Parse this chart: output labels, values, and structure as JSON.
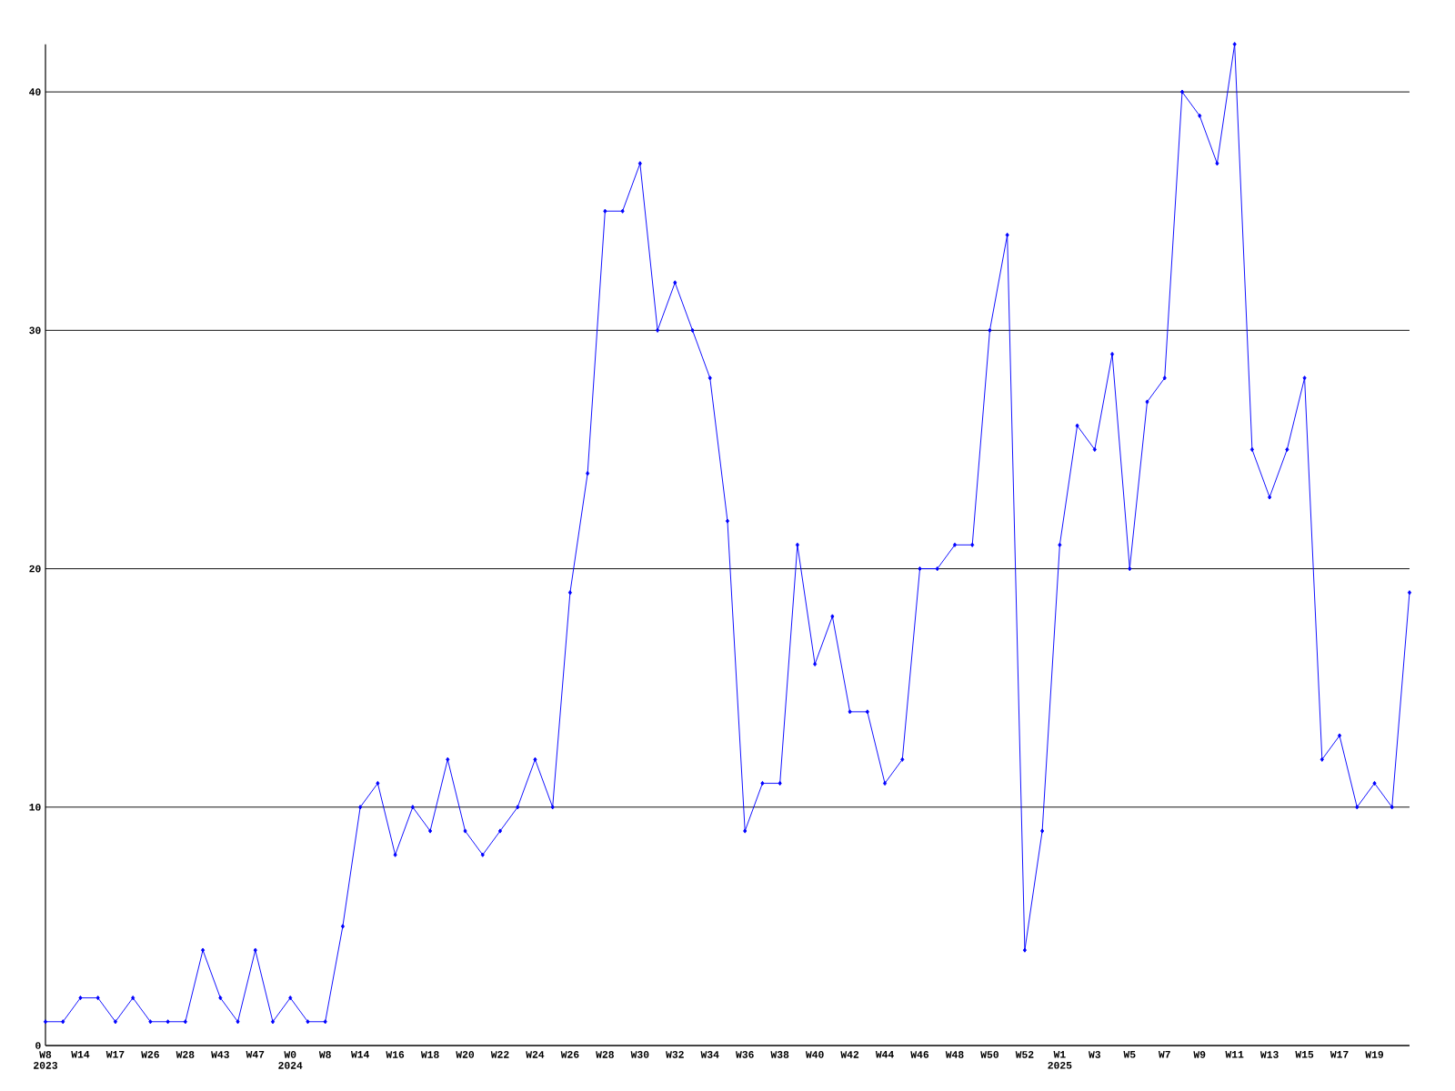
{
  "chart_data": {
    "type": "line",
    "categories": [
      "W8 2023",
      null,
      "W14",
      null,
      "W17",
      null,
      "W26",
      null,
      "W28",
      null,
      "W43",
      null,
      "W47",
      null,
      "W0 2024",
      null,
      "W8",
      null,
      "W14",
      null,
      "W16",
      null,
      "W18",
      null,
      "W20",
      null,
      "W22",
      null,
      "W24",
      null,
      "W26",
      null,
      "W28",
      null,
      "W30",
      null,
      "W32",
      null,
      "W34",
      null,
      "W36",
      null,
      "W38",
      null,
      "W40",
      null,
      "W42",
      null,
      "W44",
      null,
      "W46",
      null,
      "W48",
      null,
      "W50",
      null,
      "W52",
      null,
      "W1 2025",
      null,
      "W3",
      null,
      "W5",
      null,
      "W7",
      null,
      "W9",
      null,
      "W11",
      null,
      "W13",
      null,
      "W15",
      null,
      "W17",
      null,
      "W19",
      null,
      null
    ],
    "values": [
      1,
      1,
      2,
      2,
      1,
      2,
      1,
      1,
      1,
      4,
      2,
      1,
      4,
      1,
      2,
      1,
      1,
      5,
      10,
      11,
      8,
      10,
      9,
      12,
      9,
      8,
      9,
      10,
      12,
      10,
      19,
      24,
      35,
      35,
      37,
      30,
      32,
      30,
      28,
      22,
      9,
      11,
      11,
      21,
      16,
      18,
      14,
      14,
      11,
      12,
      20,
      20,
      21,
      21,
      30,
      34,
      4,
      9,
      21,
      26,
      25,
      29,
      20,
      27,
      28,
      40,
      39,
      37,
      42,
      25,
      23,
      25,
      28,
      12,
      13,
      10,
      11,
      10,
      19
    ],
    "color": "#0000ff",
    "marker": "diamond",
    "line_style": "solid",
    "ylim": [
      0,
      42
    ],
    "yticks": [
      0,
      10,
      20,
      30,
      40
    ],
    "grid": "y"
  }
}
